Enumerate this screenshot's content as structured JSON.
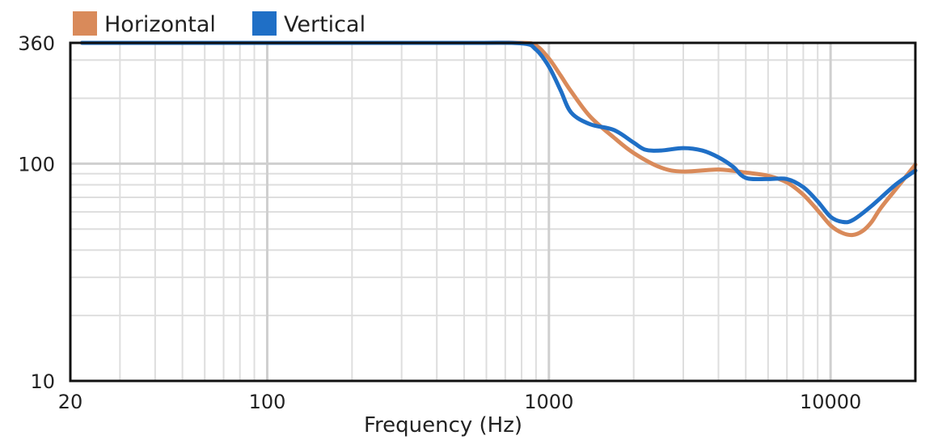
{
  "chart_data": {
    "type": "line",
    "title": "",
    "xlabel": "Frequency (Hz)",
    "ylabel": "",
    "x_scale": "log",
    "y_scale": "log",
    "xlim": [
      20,
      20000
    ],
    "ylim": [
      10,
      360
    ],
    "x_tick_labels": [
      {
        "value": 20,
        "label": "20"
      },
      {
        "value": 100,
        "label": "100"
      },
      {
        "value": 1000,
        "label": "1000"
      },
      {
        "value": 10000,
        "label": "10000"
      }
    ],
    "y_tick_labels": [
      {
        "value": 360,
        "label": "360"
      },
      {
        "value": 100,
        "label": "100"
      },
      {
        "value": 10,
        "label": "10"
      }
    ],
    "grid": true,
    "legend_position": "top-left",
    "series": [
      {
        "name": "Horizontal",
        "color": "#d98a5a",
        "x": [
          22,
          100,
          500,
          800,
          900,
          1000,
          1100,
          1200,
          1400,
          1700,
          2000,
          2500,
          3000,
          4000,
          5000,
          6000,
          7000,
          8000,
          9000,
          10000,
          11000,
          12000,
          13000,
          14000,
          15000,
          17000,
          20000
        ],
        "y": [
          360,
          360,
          360,
          360,
          350,
          305,
          255,
          215,
          165,
          132,
          112,
          96,
          92,
          94,
          91,
          88,
          82,
          72,
          61,
          52,
          48,
          47,
          49,
          54,
          62,
          76,
          99
        ]
      },
      {
        "name": "Vertical",
        "color": "#1f6fc6",
        "x": [
          22,
          100,
          500,
          800,
          900,
          1000,
          1100,
          1200,
          1400,
          1700,
          2000,
          2200,
          2500,
          3000,
          3500,
          4000,
          4500,
          5000,
          6000,
          7000,
          8000,
          9000,
          10000,
          11000,
          12000,
          14000,
          17000,
          20000
        ],
        "y": [
          360,
          360,
          360,
          358,
          335,
          280,
          218,
          172,
          152,
          143,
          125,
          116,
          115,
          118,
          115,
          107,
          97,
          86,
          85,
          85,
          78,
          67,
          57,
          54,
          55,
          64,
          80,
          93
        ]
      }
    ]
  }
}
